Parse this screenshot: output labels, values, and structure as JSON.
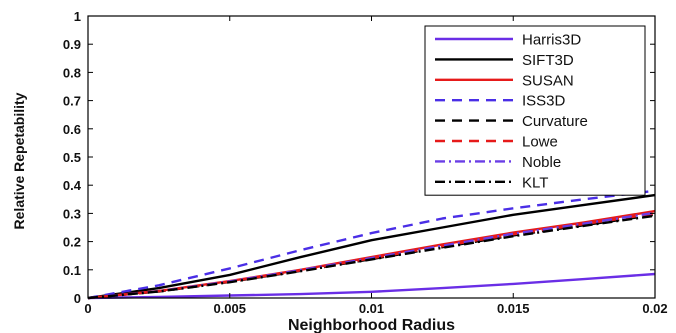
{
  "chart_data": {
    "type": "line",
    "xlabel": "Neighborhood Radius",
    "ylabel": "Relative Repetability",
    "xlim": [
      0,
      0.02
    ],
    "ylim": [
      0,
      1
    ],
    "x_ticks": [
      0,
      0.005,
      0.01,
      0.015,
      0.02
    ],
    "x_tick_labels": [
      "0",
      "0.005",
      "0.01",
      "0.015",
      "0.02"
    ],
    "y_ticks": [
      0,
      0.1,
      0.2,
      0.3,
      0.4,
      0.5,
      0.6,
      0.7,
      0.8,
      0.9,
      1
    ],
    "y_tick_labels": [
      "0",
      "0.1",
      "0.2",
      "0.3",
      "0.4",
      "0.5",
      "0.6",
      "0.7",
      "0.8",
      "0.9",
      "1"
    ],
    "grid": false,
    "legend_position": "top-right",
    "x": [
      0,
      0.0025,
      0.005,
      0.0075,
      0.01,
      0.0125,
      0.015,
      0.0175,
      0.02
    ],
    "series": [
      {
        "name": "Harris3D",
        "color": "#6a2ee6",
        "dash": "solid",
        "values": [
          0,
          0.004,
          0.009,
          0.014,
          0.022,
          0.035,
          0.05,
          0.067,
          0.085
        ]
      },
      {
        "name": "SIFT3D",
        "color": "#000000",
        "dash": "solid",
        "values": [
          0,
          0.035,
          0.082,
          0.145,
          0.205,
          0.25,
          0.295,
          0.33,
          0.365
        ]
      },
      {
        "name": "SUSAN",
        "color": "#e61a1a",
        "dash": "solid",
        "values": [
          0,
          0.025,
          0.06,
          0.1,
          0.145,
          0.19,
          0.232,
          0.268,
          0.308
        ]
      },
      {
        "name": "ISS3D",
        "color": "#4a2ee6",
        "dash": "dashed",
        "values": [
          0,
          0.045,
          0.105,
          0.17,
          0.23,
          0.282,
          0.318,
          0.35,
          0.38
        ]
      },
      {
        "name": "Curvature",
        "color": "#000000",
        "dash": "dashed",
        "values": [
          0,
          0.023,
          0.057,
          0.096,
          0.138,
          0.18,
          0.222,
          0.258,
          0.295
        ]
      },
      {
        "name": "Lowe",
        "color": "#e61a1a",
        "dash": "dashed",
        "values": [
          0,
          0.024,
          0.058,
          0.098,
          0.141,
          0.184,
          0.226,
          0.262,
          0.3
        ]
      },
      {
        "name": "Noble",
        "color": "#6a3ee6",
        "dash": "dashdot",
        "values": [
          0,
          0.024,
          0.059,
          0.099,
          0.142,
          0.185,
          0.228,
          0.264,
          0.302
        ]
      },
      {
        "name": "KLT",
        "color": "#000000",
        "dash": "dashdot",
        "values": [
          0,
          0.023,
          0.056,
          0.095,
          0.137,
          0.178,
          0.219,
          0.256,
          0.292
        ]
      }
    ]
  }
}
